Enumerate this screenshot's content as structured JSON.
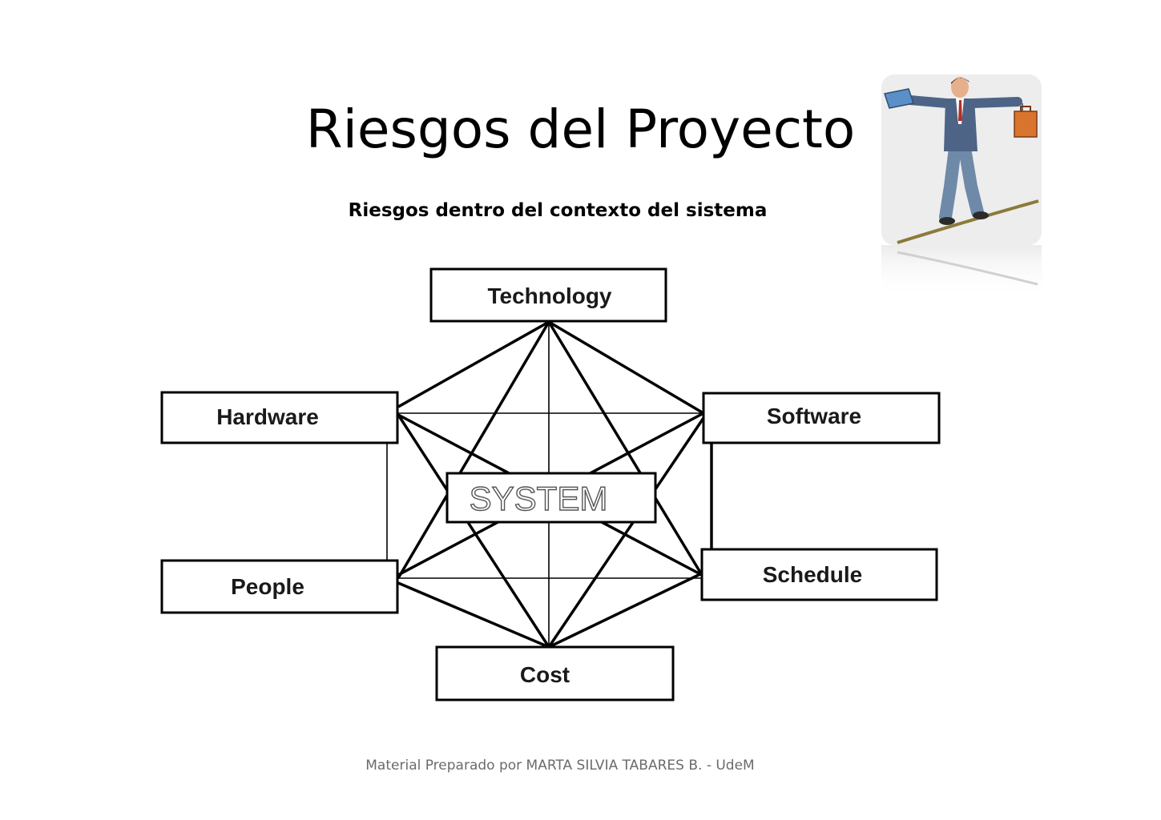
{
  "slide": {
    "title": "Riesgos del Proyecto",
    "subtitle": "Riesgos dentro del contexto del sistema",
    "footer": "Material Preparado por MARTA SILVIA TABARES B. -  UdeM"
  },
  "diagram": {
    "center": "SYSTEM",
    "nodes": {
      "technology": "Technology",
      "hardware": "Hardware",
      "software": "Software",
      "people": "People",
      "schedule": "Schedule",
      "cost": "Cost"
    }
  },
  "clipart": {
    "icon": "tightrope-businessman-icon"
  }
}
